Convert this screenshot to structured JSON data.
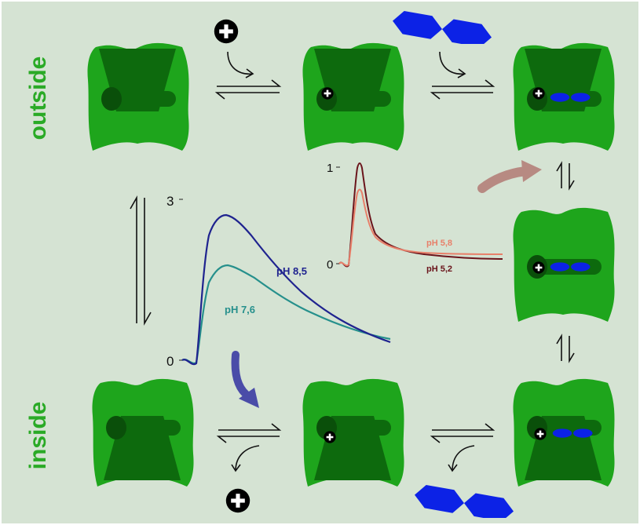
{
  "labels": {
    "outside": "outside",
    "inside": "inside"
  },
  "colors": {
    "background": "#d5e3d3",
    "transporter": "#1ea51c",
    "transporter_vestibule": "#0d6a0d",
    "substrate": "#0c22e6",
    "ph_8_5": "#1f238f",
    "ph_7_6": "#26908c",
    "ph_5_8": "#e8806a",
    "ph_5_2": "#6a141b",
    "arrow_blue": "#4a4ca8",
    "arrow_rose": "#b78a82",
    "label_green": "#2aaa26"
  },
  "icons": {
    "cation": "plus-circle-icon",
    "substrate": "hexagon-pair-icon"
  },
  "chart_left": {
    "ytick_top": "3",
    "ytick_bottom": "0",
    "series": [
      {
        "name": "pH 8,5"
      },
      {
        "name": "pH 7,6"
      }
    ]
  },
  "chart_right": {
    "ytick_top": "1",
    "ytick_bottom": "0",
    "series": [
      {
        "name": "pH 5,8"
      },
      {
        "name": "pH 5,2"
      }
    ]
  }
}
